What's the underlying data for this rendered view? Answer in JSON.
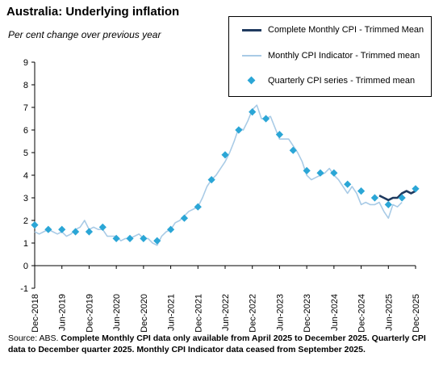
{
  "title": "Australia: Underlying inflation",
  "subtitle": "Per cent change over previous year",
  "legend": {
    "items": [
      {
        "label": "Complete Monthly CPI - Trimmed Mean",
        "color": "#1F3A5F",
        "kind": "line-thick"
      },
      {
        "label": "Monthly CPI Indicator - Trimmed mean",
        "color": "#A9CBE6",
        "kind": "line-thin"
      },
      {
        "label": "Quarterly CPI series - Trimmed mean",
        "color": "#2BA6D6",
        "kind": "diamond"
      }
    ]
  },
  "source": {
    "prefix": "Source: ABS.",
    "text": "Complete Monthly CPI data only available from April 2025 to December 2025. Quarterly CPI data to December quarter 2025. Monthly CPI Indicator data ceased from September 2025."
  },
  "chart_data": {
    "type": "line",
    "title": "Australia: Underlying inflation",
    "ylabel": "Per cent change over previous year",
    "ylim": [
      -1,
      9
    ],
    "yticks": [
      "-1",
      "0",
      "1",
      "2",
      "3",
      "4",
      "5",
      "6",
      "7",
      "8",
      "9"
    ],
    "xlim": [
      "2018-12",
      "2025-12"
    ],
    "xticks": [
      "Dec-2018",
      "Jun-2019",
      "Dec-2019",
      "Jun-2020",
      "Dec-2020",
      "Jun-2021",
      "Dec-2021",
      "Jun-2022",
      "Dec-2022",
      "Jun-2023",
      "Dec-2023",
      "Jun-2024",
      "Dec-2024",
      "Jun-2025",
      "Dec-2025"
    ],
    "grid": false,
    "legend_position": "top-right",
    "series": [
      {
        "name": "Monthly CPI Indicator - Trimmed mean",
        "kind": "line",
        "color": "#A9CBE6",
        "x": [
          "2018-12",
          "2019-01",
          "2019-02",
          "2019-03",
          "2019-04",
          "2019-05",
          "2019-06",
          "2019-07",
          "2019-08",
          "2019-09",
          "2019-10",
          "2019-11",
          "2019-12",
          "2020-01",
          "2020-02",
          "2020-03",
          "2020-04",
          "2020-05",
          "2020-06",
          "2020-07",
          "2020-08",
          "2020-09",
          "2020-10",
          "2020-11",
          "2020-12",
          "2021-01",
          "2021-02",
          "2021-03",
          "2021-04",
          "2021-05",
          "2021-06",
          "2021-07",
          "2021-08",
          "2021-09",
          "2021-10",
          "2021-11",
          "2021-12",
          "2022-01",
          "2022-02",
          "2022-03",
          "2022-04",
          "2022-05",
          "2022-06",
          "2022-07",
          "2022-08",
          "2022-09",
          "2022-10",
          "2022-11",
          "2022-12",
          "2023-01",
          "2023-02",
          "2023-03",
          "2023-04",
          "2023-05",
          "2023-06",
          "2023-07",
          "2023-08",
          "2023-09",
          "2023-10",
          "2023-11",
          "2023-12",
          "2024-01",
          "2024-02",
          "2024-03",
          "2024-04",
          "2024-05",
          "2024-06",
          "2024-07",
          "2024-08",
          "2024-09",
          "2024-10",
          "2024-11",
          "2024-12",
          "2025-01",
          "2025-02",
          "2025-03",
          "2025-04",
          "2025-05",
          "2025-06",
          "2025-07",
          "2025-08",
          "2025-09"
        ],
        "y": [
          1.5,
          1.4,
          1.5,
          1.6,
          1.5,
          1.4,
          1.5,
          1.3,
          1.4,
          1.6,
          1.7,
          2.0,
          1.6,
          1.7,
          1.6,
          1.6,
          1.3,
          1.3,
          1.3,
          1.1,
          1.2,
          1.2,
          1.3,
          1.4,
          1.2,
          1.2,
          1.0,
          0.9,
          1.3,
          1.5,
          1.6,
          1.9,
          2.0,
          2.2,
          2.4,
          2.5,
          2.6,
          3.0,
          3.5,
          3.8,
          4.0,
          4.3,
          4.6,
          5.0,
          5.5,
          6.1,
          6.0,
          6.4,
          6.9,
          7.1,
          6.5,
          6.5,
          6.6,
          6.1,
          5.6,
          5.6,
          5.6,
          5.3,
          5.0,
          4.6,
          4.0,
          3.8,
          3.9,
          4.0,
          4.1,
          4.3,
          4.0,
          3.8,
          3.5,
          3.2,
          3.5,
          3.2,
          2.7,
          2.8,
          2.7,
          2.7,
          2.8,
          2.4,
          2.1,
          2.7,
          2.6,
          2.8
        ]
      },
      {
        "name": "Complete Monthly CPI - Trimmed Mean",
        "kind": "line",
        "color": "#1F3A5F",
        "x": [
          "2025-04",
          "2025-05",
          "2025-06",
          "2025-07",
          "2025-08",
          "2025-09",
          "2025-10",
          "2025-11",
          "2025-12"
        ],
        "y": [
          3.1,
          3.0,
          2.9,
          3.0,
          3.0,
          3.2,
          3.3,
          3.2,
          3.3
        ]
      },
      {
        "name": "Quarterly CPI series - Trimmed mean",
        "kind": "scatter",
        "color": "#2BA6D6",
        "x": [
          "2018-12",
          "2019-03",
          "2019-06",
          "2019-09",
          "2019-12",
          "2020-03",
          "2020-06",
          "2020-09",
          "2020-12",
          "2021-03",
          "2021-06",
          "2021-09",
          "2021-12",
          "2022-03",
          "2022-06",
          "2022-09",
          "2022-12",
          "2023-03",
          "2023-06",
          "2023-09",
          "2023-12",
          "2024-03",
          "2024-06",
          "2024-09",
          "2024-12",
          "2025-03",
          "2025-06",
          "2025-09",
          "2025-12"
        ],
        "y": [
          1.8,
          1.6,
          1.6,
          1.5,
          1.5,
          1.7,
          1.2,
          1.2,
          1.2,
          1.1,
          1.6,
          2.1,
          2.6,
          3.8,
          4.9,
          6.0,
          6.8,
          6.5,
          5.8,
          5.1,
          4.2,
          4.1,
          4.1,
          3.6,
          3.3,
          3.0,
          2.7,
          3.0,
          3.4
        ]
      }
    ]
  }
}
